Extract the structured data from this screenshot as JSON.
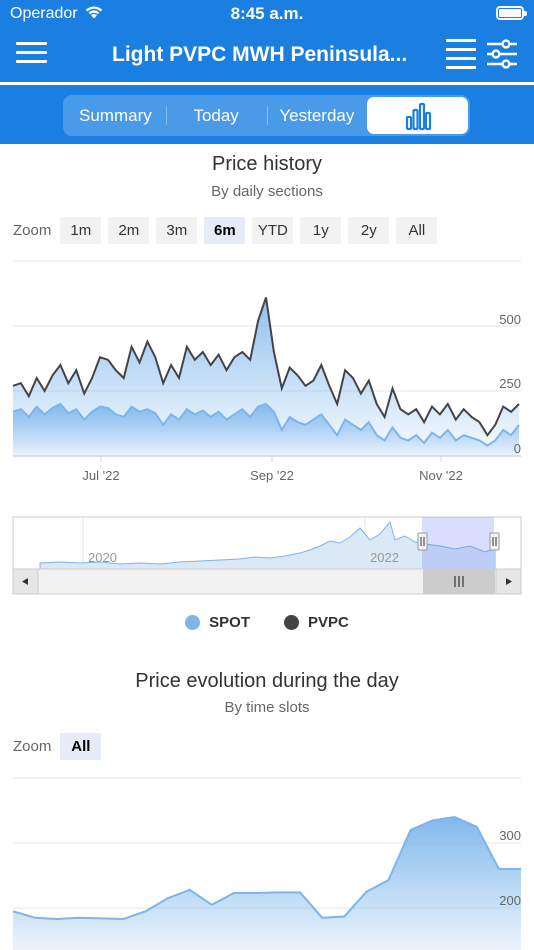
{
  "status_bar": {
    "carrier": "Operador",
    "time": "8:45 a.m."
  },
  "header": {
    "title": "Light PVPC MWH Peninsula..."
  },
  "tabs": [
    {
      "label": "Summary"
    },
    {
      "label": "Today"
    },
    {
      "label": "Yesterday"
    },
    {
      "label": "",
      "icon": "bar-chart-icon",
      "active": true
    }
  ],
  "colors": {
    "accent": "#1a7fe0",
    "spot": "#7cb5ec",
    "pvpc": "#434348"
  },
  "history": {
    "title": "Price history",
    "subtitle": "By daily sections",
    "zoom_label": "Zoom",
    "zoom_options": [
      "1m",
      "2m",
      "3m",
      "6m",
      "YTD",
      "1y",
      "2y",
      "All"
    ],
    "zoom_selected": "6m",
    "navigator_labels": [
      "2020",
      "2022"
    ],
    "legend": [
      {
        "name": "SPOT",
        "color": "#7cb5ec"
      },
      {
        "name": "PVPC",
        "color": "#434348"
      }
    ]
  },
  "day": {
    "title": "Price evolution during the day",
    "subtitle": "By time slots",
    "zoom_label": "Zoom",
    "zoom_options": [
      "All"
    ],
    "zoom_selected": "All"
  },
  "chart_data": [
    {
      "type": "area",
      "title": "Price history",
      "subtitle": "By daily sections",
      "x_tick_labels": [
        "Jul '22",
        "Sep '22",
        "Nov '22"
      ],
      "y_tick_labels": [
        "0",
        "250",
        "500"
      ],
      "ylim": [
        0,
        650
      ],
      "legend_position": "bottom",
      "series": [
        {
          "name": "PVPC",
          "type": "line",
          "values": [
            270,
            280,
            230,
            300,
            250,
            310,
            350,
            280,
            330,
            240,
            300,
            380,
            370,
            330,
            300,
            420,
            360,
            440,
            380,
            280,
            350,
            300,
            420,
            370,
            400,
            350,
            390,
            330,
            380,
            400,
            370,
            520,
            610,
            400,
            260,
            340,
            310,
            270,
            290,
            350,
            270,
            200,
            330,
            300,
            240,
            290,
            200,
            150,
            260,
            180,
            160,
            180,
            130,
            190,
            160,
            200,
            140,
            180,
            150,
            130,
            80,
            120,
            190,
            170,
            200
          ]
        },
        {
          "name": "SPOT",
          "type": "area",
          "values": [
            170,
            180,
            150,
            190,
            160,
            185,
            200,
            165,
            180,
            140,
            170,
            190,
            185,
            160,
            150,
            190,
            170,
            180,
            165,
            120,
            160,
            140,
            180,
            160,
            175,
            150,
            170,
            140,
            160,
            180,
            150,
            190,
            200,
            170,
            100,
            150,
            130,
            120,
            140,
            160,
            120,
            80,
            140,
            120,
            100,
            130,
            80,
            60,
            110,
            70,
            60,
            80,
            50,
            90,
            70,
            100,
            60,
            80,
            70,
            60,
            40,
            60,
            100,
            80,
            120
          ]
        }
      ]
    },
    {
      "type": "area",
      "title": "Price evolution during the day",
      "subtitle": "By time slots",
      "y_tick_labels": [
        "200",
        "300"
      ],
      "series": [
        {
          "name": "",
          "values": [
            195,
            185,
            183,
            185,
            184,
            183,
            195,
            215,
            228,
            205,
            223,
            223,
            224,
            224,
            185,
            187,
            225,
            243,
            320,
            335,
            340,
            325,
            260,
            260
          ]
        }
      ]
    }
  ]
}
